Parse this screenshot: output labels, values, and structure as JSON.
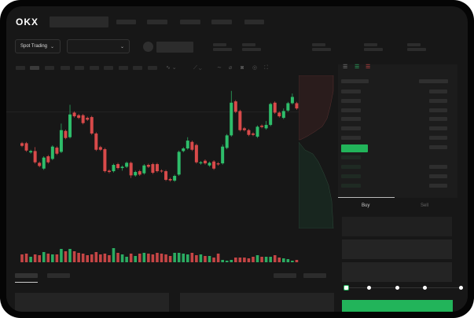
{
  "header": {
    "logo": "OKX"
  },
  "toolbar": {
    "market_select": "Spot Trading",
    "pair_select": ""
  },
  "trade": {
    "buy_label": "Buy",
    "sell_label": "Sell",
    "slider_percent": 0
  },
  "colors": {
    "up": "#2ebd6a",
    "down": "#d84a4a",
    "accent": "#22b45a",
    "background": "#171717"
  },
  "icons": [
    "orderbook-both-icon",
    "orderbook-buy-icon",
    "orderbook-sell-icon",
    "indicator-icon",
    "draw-line-icon",
    "ruler-icon",
    "camera-icon",
    "settings-icon",
    "fullscreen-icon"
  ],
  "chart_data": {
    "type": "candlestick",
    "title": "",
    "xlabel": "",
    "ylabel": "",
    "candles_ohlc": [
      [
        185,
        190,
        170,
        175
      ],
      [
        185,
        190,
        152,
        157
      ],
      [
        150,
        160,
        145,
        155
      ],
      [
        155,
        170,
        107,
        112
      ],
      [
        110,
        115,
        93,
        98
      ],
      [
        88,
        135,
        83,
        130
      ],
      [
        135,
        140,
        107,
        112
      ],
      [
        125,
        177,
        120,
        172
      ],
      [
        168,
        173,
        140,
        145
      ],
      [
        152,
        260,
        147,
        235
      ],
      [
        232,
        237,
        200,
        205
      ],
      [
        208,
        332,
        203,
        295
      ],
      [
        302,
        307,
        283,
        288
      ],
      [
        292,
        297,
        277,
        282
      ],
      [
        292,
        297,
        257,
        262
      ],
      [
        282,
        287,
        270,
        275
      ],
      [
        285,
        290,
        217,
        222
      ],
      [
        222,
        227,
        155,
        160
      ],
      [
        170,
        175,
        155,
        160
      ],
      [
        162,
        167,
        73,
        78
      ],
      [
        80,
        85,
        70,
        75
      ],
      [
        78,
        107,
        73,
        102
      ],
      [
        105,
        110,
        85,
        90
      ],
      [
        90,
        100,
        80,
        95
      ],
      [
        95,
        115,
        90,
        110
      ],
      [
        110,
        115,
        52,
        62
      ],
      [
        62,
        80,
        57,
        75
      ],
      [
        78,
        83,
        60,
        65
      ],
      [
        70,
        105,
        65,
        100
      ],
      [
        102,
        107,
        90,
        95
      ],
      [
        105,
        110,
        67,
        72
      ],
      [
        105,
        110,
        73,
        78
      ],
      [
        80,
        85,
        72,
        77
      ],
      [
        78,
        83,
        40,
        45
      ],
      [
        48,
        53,
        38,
        43
      ],
      [
        42,
        65,
        37,
        60
      ],
      [
        65,
        157,
        60,
        152
      ],
      [
        155,
        170,
        150,
        165
      ],
      [
        165,
        208,
        160,
        195
      ],
      [
        190,
        195,
        155,
        160
      ],
      [
        178,
        183,
        107,
        112
      ],
      [
        108,
        117,
        103,
        112
      ],
      [
        118,
        123,
        103,
        108
      ],
      [
        100,
        115,
        95,
        110
      ],
      [
        115,
        120,
        83,
        88
      ],
      [
        108,
        113,
        99,
        104
      ],
      [
        108,
        180,
        103,
        172
      ],
      [
        167,
        220,
        162,
        215
      ],
      [
        215,
        385,
        210,
        340
      ],
      [
        345,
        350,
        300,
        305
      ],
      [
        308,
        313,
        230,
        235
      ],
      [
        242,
        247,
        230,
        235
      ],
      [
        235,
        240,
        212,
        217
      ],
      [
        222,
        227,
        212,
        217
      ],
      [
        210,
        253,
        205,
        248
      ],
      [
        252,
        257,
        242,
        247
      ],
      [
        242,
        270,
        237,
        255
      ],
      [
        255,
        340,
        250,
        335
      ],
      [
        340,
        345,
        297,
        302
      ],
      [
        302,
        307,
        283,
        288
      ],
      [
        282,
        318,
        277,
        308
      ],
      [
        310,
        343,
        305,
        338
      ],
      [
        338,
        375,
        333,
        362
      ],
      [
        338,
        343,
        313,
        318
      ],
      [
        313,
        348,
        308,
        332
      ]
    ],
    "volume": [
      10,
      11,
      7,
      10,
      9,
      13,
      11,
      10,
      10,
      17,
      14,
      17,
      14,
      12,
      11,
      9,
      10,
      13,
      10,
      11,
      9,
      18,
      12,
      10,
      7,
      11,
      8,
      11,
      12,
      11,
      10,
      12,
      11,
      10,
      8,
      12,
      12,
      11,
      10,
      12,
      9,
      10,
      8,
      8,
      6,
      11,
      3,
      2,
      3,
      6,
      6,
      6,
      5,
      7,
      9,
      7,
      7,
      7,
      9,
      6,
      5,
      4,
      2,
      3,
      4
    ],
    "guide_price": 305
  }
}
